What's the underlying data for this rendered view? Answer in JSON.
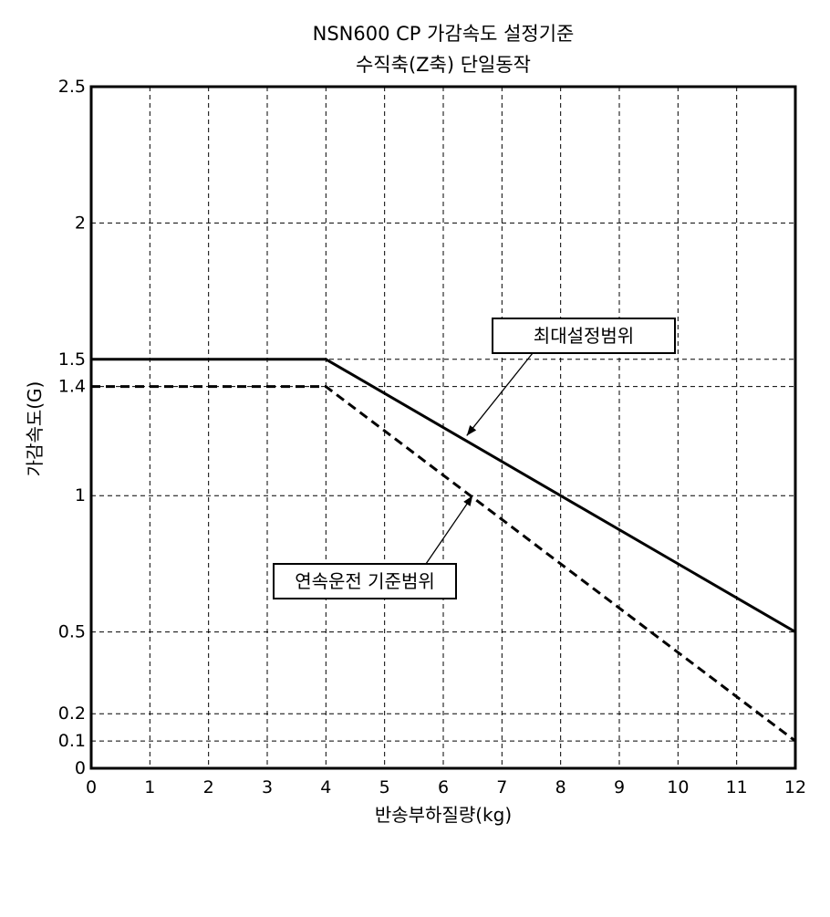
{
  "chart_data": {
    "type": "line",
    "title": "NSN600 CP 가감속도 설정기준",
    "subtitle": "수직축(Z축) 단일동작",
    "xlabel": "반송부하질량(kg)",
    "ylabel": "가감속도(G)",
    "xlim": [
      0,
      12
    ],
    "ylim": [
      0,
      2.5
    ],
    "x_ticks": [
      0,
      1,
      2,
      3,
      4,
      5,
      6,
      7,
      8,
      9,
      10,
      11,
      12
    ],
    "x_tick_labels": [
      "0",
      "1",
      "2",
      "3",
      "4",
      "5",
      "6",
      "7",
      "8",
      "9",
      "10",
      "11",
      "12"
    ],
    "y_ticks": [
      0,
      0.1,
      0.2,
      0.5,
      1,
      1.4,
      1.5,
      2,
      2.5
    ],
    "y_tick_labels": [
      "0",
      "0.1",
      "0.2",
      "0.5",
      "1",
      "1.4",
      "1.5",
      "2",
      "2.5"
    ],
    "grid": true,
    "series": [
      {
        "name": "최대설정범위",
        "style": "solid",
        "x": [
          0,
          4,
          12
        ],
        "y": [
          1.5,
          1.5,
          0.5
        ]
      },
      {
        "name": "연속운전 기준범위",
        "style": "dashed",
        "x": [
          0,
          4,
          12
        ],
        "y": [
          1.4,
          1.4,
          0.1
        ]
      }
    ],
    "annotations": [
      {
        "text": "최대설정범위",
        "series": 0,
        "point": [
          6.4,
          1.22
        ]
      },
      {
        "text": "연속운전 기준범위",
        "series": 1,
        "point": [
          6.5,
          1.0
        ]
      }
    ]
  },
  "colors": {
    "line": "#000000",
    "grid": "#000000",
    "background": "#ffffff"
  }
}
